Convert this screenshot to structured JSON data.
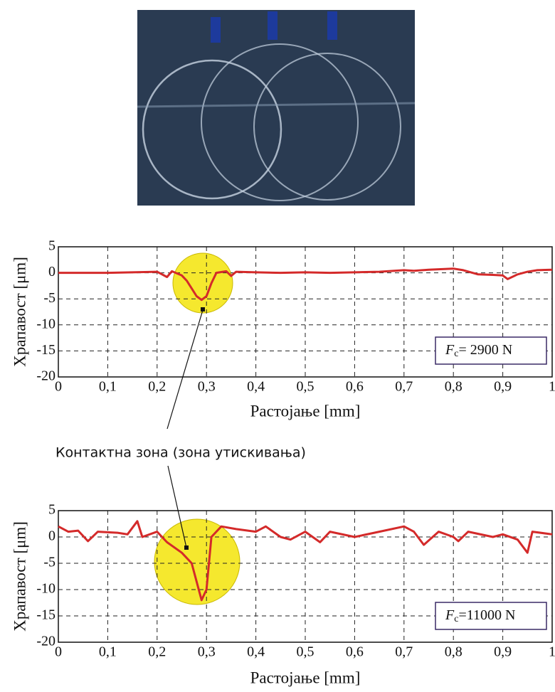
{
  "chart_data": [
    {
      "type": "line",
      "x_label": "Растојање [mm]",
      "y_label": "Храпавост [μm]",
      "x": [
        0,
        0.05,
        0.1,
        0.15,
        0.2,
        0.22,
        0.23,
        0.25,
        0.26,
        0.27,
        0.28,
        0.29,
        0.3,
        0.31,
        0.32,
        0.34,
        0.35,
        0.36,
        0.4,
        0.45,
        0.5,
        0.55,
        0.6,
        0.65,
        0.7,
        0.72,
        0.75,
        0.8,
        0.82,
        0.85,
        0.88,
        0.9,
        0.91,
        0.93,
        0.95,
        0.97,
        1
      ],
      "series": [
        {
          "color": "#d42a2a",
          "values": [
            0,
            0,
            0,
            0.1,
            0.2,
            -0.8,
            0.3,
            -0.5,
            -1.5,
            -3,
            -4.5,
            -5.2,
            -4.5,
            -2,
            0,
            0.3,
            -0.6,
            0.2,
            0.1,
            0,
            0.1,
            0,
            0.1,
            0.2,
            0.5,
            0.4,
            0.6,
            0.8,
            0.5,
            -0.3,
            -0.4,
            -0.5,
            -1.2,
            -0.3,
            0.2,
            0.5,
            0.6
          ]
        }
      ],
      "xlim": [
        0,
        1
      ],
      "ylim": [
        -20,
        5
      ],
      "xticks": [
        0,
        {
          "value": 0.1,
          "label": "0,1"
        },
        {
          "value": 0.2,
          "label": "0,2"
        },
        {
          "value": 0.3,
          "label": "0,3"
        },
        {
          "value": 0.4,
          "label": "0,4"
        },
        {
          "value": 0.5,
          "label": "0,5"
        },
        {
          "value": 0.6,
          "label": "0,6"
        },
        {
          "value": 0.7,
          "label": "0,7"
        },
        {
          "value": 0.8,
          "label": "0,8"
        },
        {
          "value": 0.9,
          "label": "0,9"
        },
        1
      ],
      "yticks": [
        -20,
        -15,
        -10,
        -5,
        0,
        5
      ],
      "grid": true,
      "annotation": {
        "variable": "F",
        "subscript": "c",
        "text": "= 2900 N"
      }
    },
    {
      "type": "line",
      "x_label": "Растојање [mm]",
      "y_label": "Храпавост [μm]",
      "x": [
        0,
        0.02,
        0.04,
        0.06,
        0.08,
        0.12,
        0.14,
        0.16,
        0.17,
        0.2,
        0.21,
        0.22,
        0.25,
        0.27,
        0.29,
        0.3,
        0.31,
        0.33,
        0.36,
        0.4,
        0.42,
        0.45,
        0.47,
        0.5,
        0.53,
        0.55,
        0.6,
        0.65,
        0.7,
        0.72,
        0.74,
        0.77,
        0.8,
        0.81,
        0.83,
        0.88,
        0.9,
        0.93,
        0.95,
        0.96,
        1
      ],
      "series": [
        {
          "color": "#d42a2a",
          "values": [
            2,
            1,
            1.2,
            -0.8,
            1,
            0.8,
            0.5,
            3,
            0,
            1,
            0,
            -1,
            -3,
            -5,
            -12,
            -10,
            0,
            2,
            1.5,
            1,
            2,
            0,
            -0.5,
            1,
            -1,
            1,
            0,
            1,
            2,
            1,
            -1.5,
            1,
            0,
            -0.8,
            1,
            0,
            0.5,
            -0.5,
            -3,
            1,
            0.5
          ]
        }
      ],
      "xlim": [
        0,
        1
      ],
      "ylim": [
        -20,
        5
      ],
      "xticks": [
        0,
        {
          "value": 0.1,
          "label": "0,1"
        },
        {
          "value": 0.2,
          "label": "0,2"
        },
        {
          "value": 0.3,
          "label": "0,3"
        },
        {
          "value": 0.4,
          "label": "0,4"
        },
        {
          "value": 0.5,
          "label": "0,5"
        },
        {
          "value": 0.6,
          "label": "0,6"
        },
        {
          "value": 0.7,
          "label": "0,7"
        },
        {
          "value": 0.8,
          "label": "0,8"
        },
        {
          "value": 0.9,
          "label": "0,9"
        },
        1
      ],
      "yticks": [
        -20,
        -15,
        -10,
        -5,
        0,
        5
      ],
      "grid": true,
      "annotation": {
        "variable": "F",
        "subscript": "c",
        "text": "=11000 N"
      }
    }
  ],
  "callout": "Контактна зона (зона утискивања)"
}
